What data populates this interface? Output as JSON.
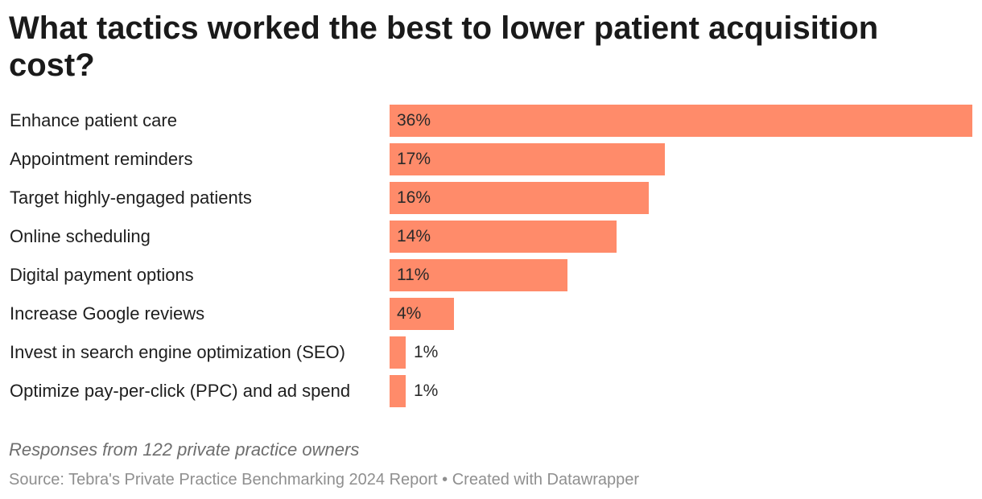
{
  "colors": {
    "bar": "#ff8b6a"
  },
  "chart_data": {
    "type": "bar",
    "orientation": "horizontal",
    "title": "What tactics worked the best to lower patient acquisition cost?",
    "value_format": "percent",
    "xlim": [
      0,
      36
    ],
    "categories": [
      "Enhance patient care",
      "Appointment reminders",
      "Target highly-engaged patients",
      "Online scheduling",
      "Digital payment options",
      "Increase Google reviews",
      "Invest in search engine optimization (SEO)",
      "Optimize pay-per-click (PPC) and ad spend"
    ],
    "values": [
      36,
      17,
      16,
      14,
      11,
      4,
      1,
      1
    ],
    "value_labels": [
      "36%",
      "17%",
      "16%",
      "14%",
      "11%",
      "4%",
      "1%",
      "1%"
    ],
    "note": "Responses from 122 private practice owners",
    "source": "Source: Tebra's Private Practice Benchmarking 2024 Report • Created with Datawrapper"
  }
}
